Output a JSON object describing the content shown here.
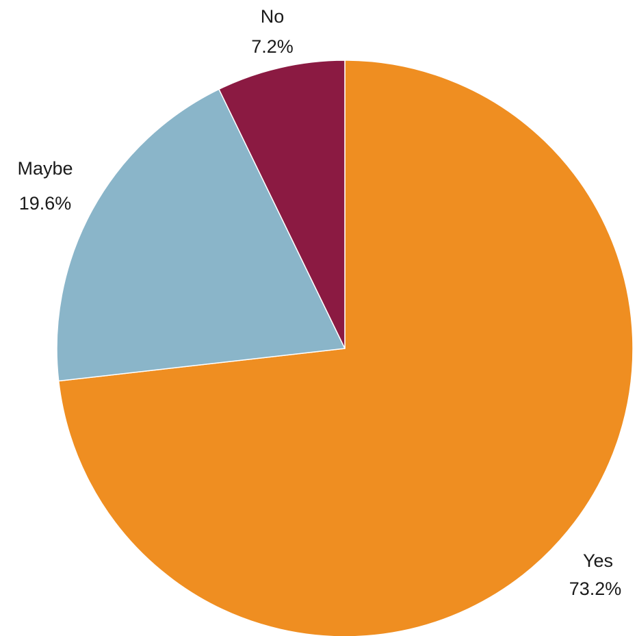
{
  "chart_data": {
    "type": "pie",
    "categories": [
      "Yes",
      "Maybe",
      "No"
    ],
    "values": [
      73.2,
      19.6,
      7.2
    ],
    "percent_labels": [
      "73.2%",
      "19.6%",
      "7.2%"
    ],
    "colors": [
      "#ef8e21",
      "#8ab5c9",
      "#8b1a42"
    ],
    "start_angle": "12 o'clock",
    "direction": "clockwise",
    "legend": "none (labels placed outside slices)"
  }
}
